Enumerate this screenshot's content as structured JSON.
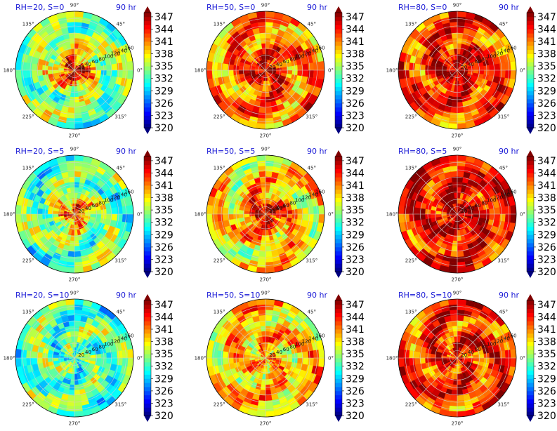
{
  "chart_data": [
    {
      "type": "heatmap",
      "title_left": "RH=20, S=0",
      "title_right": "90 hr",
      "theta_ticks": [
        "0°",
        "45°",
        "90°",
        "135°",
        "180°",
        "225°",
        "270°",
        "315°"
      ],
      "r_ticks": [
        "20",
        "40",
        "60",
        "80",
        "100",
        "120",
        "140",
        "160"
      ],
      "colorbar_ticks": [
        "320",
        "323",
        "326",
        "329",
        "332",
        "335",
        "338",
        "341",
        "344",
        "347"
      ],
      "clim": [
        320,
        348
      ],
      "core_value": 346,
      "mean_value": 334
    },
    {
      "type": "heatmap",
      "title_left": "RH=50, S=0",
      "title_right": "90 hr",
      "theta_ticks": [
        "0°",
        "45°",
        "90°",
        "135°",
        "180°",
        "225°",
        "270°",
        "315°"
      ],
      "r_ticks": [
        "20",
        "40",
        "60",
        "80",
        "100",
        "120",
        "140",
        "160"
      ],
      "colorbar_ticks": [
        "320",
        "323",
        "326",
        "329",
        "332",
        "335",
        "338",
        "341",
        "344",
        "347"
      ],
      "clim": [
        320,
        348
      ],
      "core_value": 347,
      "mean_value": 341
    },
    {
      "type": "heatmap",
      "title_left": "RH=80, S=0",
      "title_right": "90 hr",
      "theta_ticks": [
        "0°",
        "45°",
        "90°",
        "135°",
        "180°",
        "225°",
        "270°",
        "315°"
      ],
      "r_ticks": [
        "20",
        "40",
        "60",
        "80",
        "100",
        "120",
        "140",
        "160"
      ],
      "colorbar_ticks": [
        "320",
        "323",
        "326",
        "329",
        "332",
        "335",
        "338",
        "341",
        "344",
        "347"
      ],
      "clim": [
        320,
        348
      ],
      "core_value": 348,
      "mean_value": 343
    },
    {
      "type": "heatmap",
      "title_left": "RH=20, S=5",
      "title_right": "90 hr",
      "theta_ticks": [
        "0°",
        "45°",
        "90°",
        "135°",
        "180°",
        "225°",
        "270°",
        "315°"
      ],
      "r_ticks": [
        "20",
        "40",
        "60",
        "80",
        "100",
        "120",
        "140",
        "160"
      ],
      "colorbar_ticks": [
        "320",
        "323",
        "326",
        "329",
        "332",
        "335",
        "338",
        "341",
        "344",
        "347"
      ],
      "clim": [
        320,
        348
      ],
      "core_value": 343,
      "mean_value": 333
    },
    {
      "type": "heatmap",
      "title_left": "RH=50, S=5",
      "title_right": "90 hr",
      "theta_ticks": [
        "0°",
        "45°",
        "90°",
        "135°",
        "180°",
        "225°",
        "270°",
        "315°"
      ],
      "r_ticks": [
        "20",
        "40",
        "60",
        "80",
        "100",
        "120",
        "140",
        "160"
      ],
      "colorbar_ticks": [
        "320",
        "323",
        "326",
        "329",
        "332",
        "335",
        "338",
        "341",
        "344",
        "347"
      ],
      "clim": [
        320,
        348
      ],
      "core_value": 347,
      "mean_value": 338
    },
    {
      "type": "heatmap",
      "title_left": "RH=80, S=5",
      "title_right": "90 hr",
      "theta_ticks": [
        "0°",
        "45°",
        "90°",
        "135°",
        "180°",
        "225°",
        "270°",
        "315°"
      ],
      "r_ticks": [
        "20",
        "40",
        "60",
        "80",
        "100",
        "120",
        "140",
        "160"
      ],
      "colorbar_ticks": [
        "320",
        "323",
        "326",
        "329",
        "332",
        "335",
        "338",
        "341",
        "344",
        "347"
      ],
      "clim": [
        320,
        348
      ],
      "core_value": 348,
      "mean_value": 344
    },
    {
      "type": "heatmap",
      "title_left": "RH=20, S=10",
      "title_right": "90 hr",
      "theta_ticks": [
        "0°",
        "45°",
        "90°",
        "135°",
        "180°",
        "225°",
        "270°",
        "315°"
      ],
      "r_ticks": [
        "20",
        "40",
        "60",
        "80",
        "100",
        "120",
        "140",
        "160"
      ],
      "colorbar_ticks": [
        "320",
        "323",
        "326",
        "329",
        "332",
        "335",
        "338",
        "341",
        "344",
        "347"
      ],
      "clim": [
        320,
        348
      ],
      "core_value": 333,
      "mean_value": 333
    },
    {
      "type": "heatmap",
      "title_left": "RH=50, S=10",
      "title_right": "90 hr",
      "theta_ticks": [
        "0°",
        "45°",
        "90°",
        "135°",
        "180°",
        "225°",
        "270°",
        "315°"
      ],
      "r_ticks": [
        "20",
        "40",
        "60",
        "80",
        "100",
        "120",
        "140",
        "160"
      ],
      "colorbar_ticks": [
        "320",
        "323",
        "326",
        "329",
        "332",
        "335",
        "338",
        "341",
        "344",
        "347"
      ],
      "clim": [
        320,
        348
      ],
      "core_value": 340,
      "mean_value": 339
    },
    {
      "type": "heatmap",
      "title_left": "RH=80, S=10",
      "title_right": "90 hr",
      "theta_ticks": [
        "0°",
        "45°",
        "90°",
        "135°",
        "180°",
        "225°",
        "270°",
        "315°"
      ],
      "r_ticks": [
        "20",
        "40",
        "60",
        "80",
        "100",
        "120",
        "140",
        "160"
      ],
      "colorbar_ticks": [
        "320",
        "323",
        "326",
        "329",
        "332",
        "335",
        "338",
        "341",
        "344",
        "347"
      ],
      "clim": [
        320,
        348
      ],
      "core_value": 344,
      "mean_value": 343
    }
  ],
  "colormap": "jet"
}
